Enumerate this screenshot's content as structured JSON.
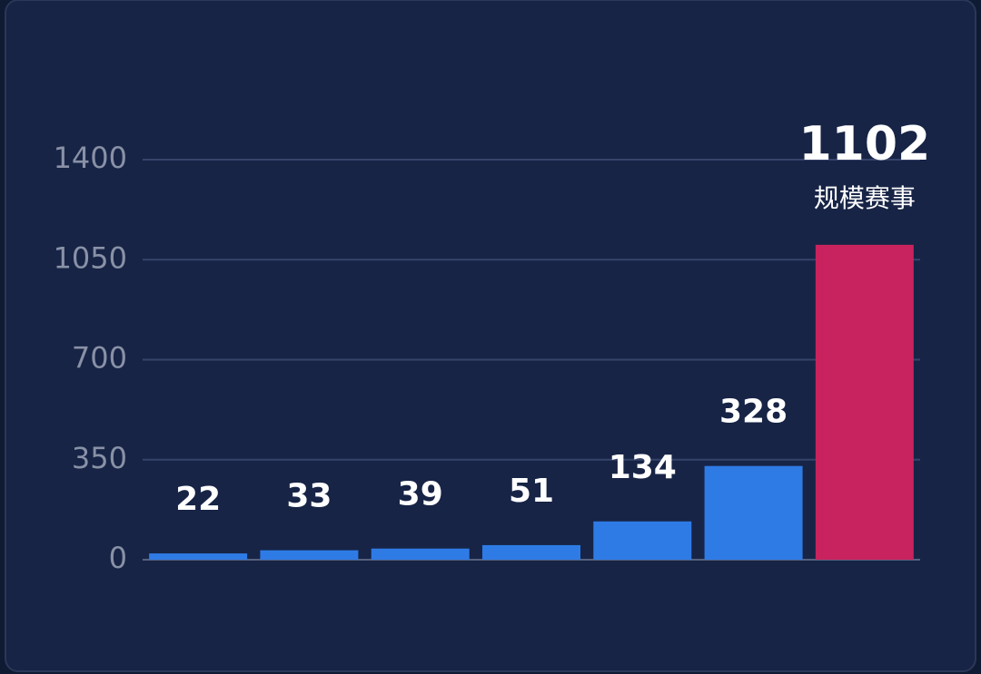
{
  "chart_data": {
    "type": "bar",
    "categories": [
      null,
      null,
      null,
      null,
      null,
      null,
      null
    ],
    "values": [
      22,
      33,
      39,
      51,
      134,
      328,
      1102
    ],
    "colors": [
      "#2e7be6",
      "#2e7be6",
      "#2e7be6",
      "#2e7be6",
      "#2e7be6",
      "#2e7be6",
      "#c8235e"
    ],
    "value_annotations": [
      null,
      null,
      null,
      null,
      null,
      null,
      "规模赛事"
    ],
    "ylim": [
      0,
      1400
    ],
    "yticks": [
      0,
      350,
      700,
      1050,
      1400
    ],
    "grid": true
  }
}
